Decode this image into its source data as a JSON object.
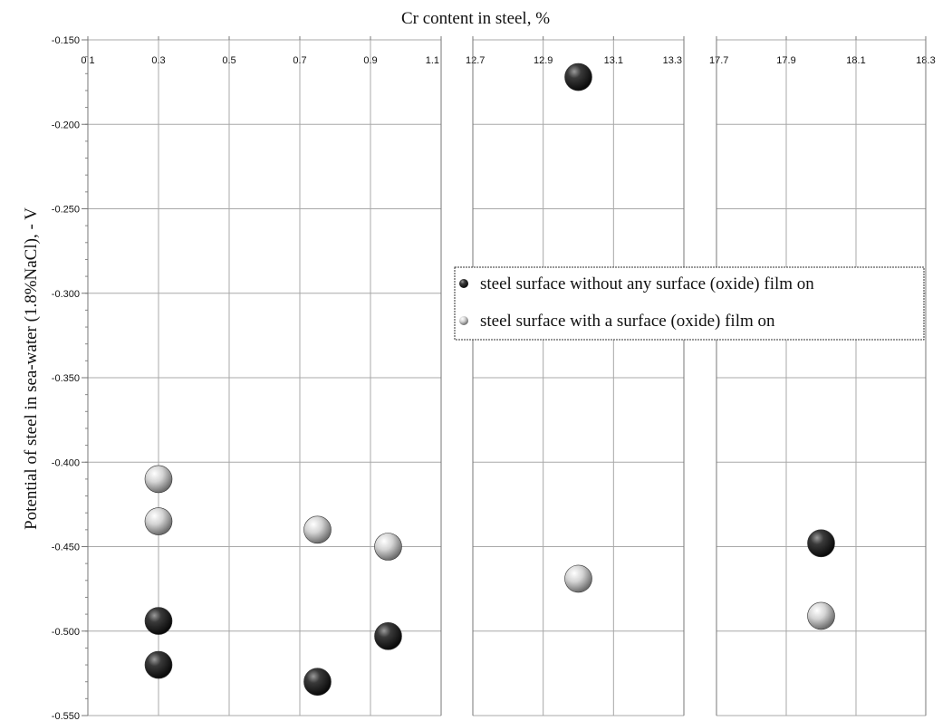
{
  "chart_data": {
    "type": "scatter",
    "title": "Cr content in steel, %",
    "xlabel": "Cr content in steel, %",
    "ylabel": "Potential of steel in sea-water (1.8%NaCl), - V",
    "ylim": [
      -0.55,
      -0.15
    ],
    "yticks": [
      "-0.150",
      "-0.200",
      "-0.250",
      "-0.300",
      "-0.350",
      "-0.400",
      "-0.450",
      "-0.500",
      "-0.550"
    ],
    "y_minor_step": 0.01,
    "grid": true,
    "panels": [
      {
        "xlim": [
          0.1,
          1.1
        ],
        "xticks": [
          "0.1",
          "0.3",
          "0.5",
          "0.7",
          "0.9",
          "1.1"
        ]
      },
      {
        "xlim": [
          12.7,
          13.3
        ],
        "xticks": [
          "12.7",
          "12.9",
          "13.1",
          "13.3"
        ]
      },
      {
        "xlim": [
          17.7,
          18.3
        ],
        "xticks": [
          "17.7",
          "17.9",
          "18.1",
          "18.3"
        ]
      }
    ],
    "series": [
      {
        "name": "steel surface without any surface (oxide) film on",
        "color": "#303030",
        "points": [
          {
            "x": 0.3,
            "y": -0.494
          },
          {
            "x": 0.3,
            "y": -0.52
          },
          {
            "x": 0.75,
            "y": -0.53
          },
          {
            "x": 0.95,
            "y": -0.503
          },
          {
            "x": 13.0,
            "y": -0.172
          },
          {
            "x": 18.0,
            "y": -0.448
          }
        ]
      },
      {
        "name": "steel surface with a surface (oxide) film on",
        "color": "#c8c8c8",
        "points": [
          {
            "x": 0.3,
            "y": -0.41
          },
          {
            "x": 0.3,
            "y": -0.435
          },
          {
            "x": 0.75,
            "y": -0.44
          },
          {
            "x": 0.95,
            "y": -0.45
          },
          {
            "x": 13.0,
            "y": -0.469
          },
          {
            "x": 18.0,
            "y": -0.491
          }
        ]
      }
    ],
    "legend_position": "center-right"
  }
}
